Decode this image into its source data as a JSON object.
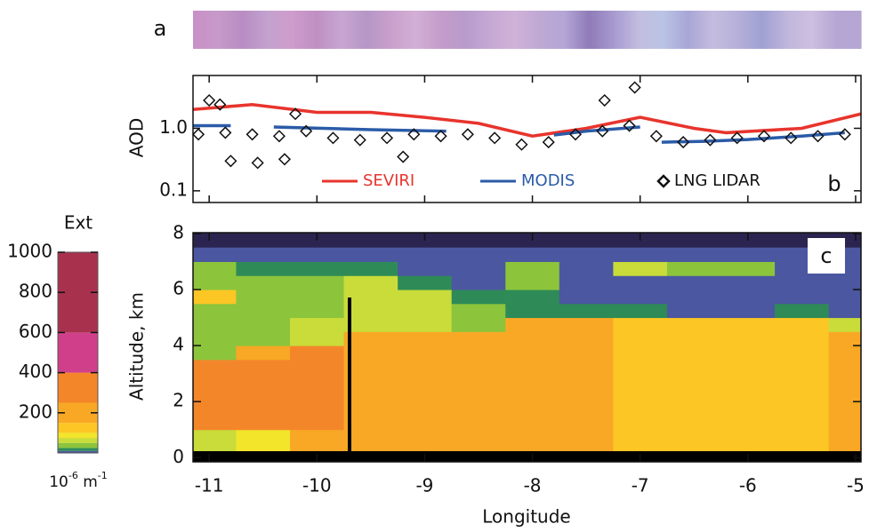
{
  "chart_data": [
    {
      "type": "image_strip",
      "panel_label": "a",
      "colors": [
        "#c890c8",
        "#c79ac9",
        "#b98cc3",
        "#c3a2cf",
        "#cf9ccb",
        "#bf8fc4",
        "#c8a6d2",
        "#b596c6",
        "#c9a0cc",
        "#d2b0d6",
        "#c49cca",
        "#b79bcb",
        "#c6a8d4",
        "#d0b2d8",
        "#bfa8d4",
        "#b4a6d6",
        "#8f7bb8",
        "#a79ad0",
        "#c2bde0",
        "#b9c4e4",
        "#a8a6d6",
        "#c5bddf",
        "#b6b0da",
        "#9fa0d2",
        "#c0b6dc",
        "#cdbfe0",
        "#b5a6d4"
      ]
    },
    {
      "type": "line_scatter",
      "panel_label": "b",
      "ylabel": "AOD",
      "yscale": "log",
      "ylim": [
        0.065,
        7
      ],
      "yticks": [
        0.1,
        {
          "value": 1,
          "label": "1.0"
        }
      ],
      "xlim": [
        -11.15,
        -4.95
      ],
      "xticks": [
        -11,
        -10,
        -9,
        -8,
        -7,
        -6,
        -5
      ],
      "series": [
        {
          "name": "SEVIRI",
          "color": "#e8342c",
          "marker": "line",
          "x": [
            -11.15,
            -10.6,
            -10,
            -9.5,
            -9,
            -8.5,
            -8,
            -7.5,
            -7,
            -6.5,
            -6.2,
            -5.5,
            -4.95
          ],
          "values": [
            2.0,
            2.4,
            1.8,
            1.8,
            1.5,
            1.2,
            0.75,
            1.0,
            1.5,
            1.0,
            0.85,
            1.0,
            1.7
          ]
        },
        {
          "name": "MODIS",
          "color": "#2a5ba8",
          "marker": "line",
          "x": [
            -11.15,
            -10.8,
            -10.6,
            -10.4,
            -9.5,
            -8.8,
            -8.7,
            -7.8,
            -7.5,
            -7.0,
            -6.85,
            -6.8,
            -6.4,
            -6,
            -5.5,
            -5.1
          ],
          "values": [
            1.1,
            1.1,
            null,
            1.05,
            0.95,
            0.9,
            null,
            0.78,
            0.9,
            1.05,
            null,
            0.6,
            0.62,
            0.66,
            0.75,
            0.85
          ]
        },
        {
          "name": "LNG LIDAR",
          "color": "#111111",
          "marker": "diamond",
          "x": [
            -11.1,
            -10.85,
            -10.6,
            -10.35,
            -10.1,
            -9.85,
            -9.6,
            -9.35,
            -9.1,
            -8.85,
            -8.6,
            -8.35,
            -8.1,
            -7.85,
            -7.6,
            -7.35,
            -7.1,
            -6.85,
            -6.6,
            -6.35,
            -6.1,
            -5.85,
            -5.6,
            -5.35,
            -5.1,
            -11.0,
            -10.9,
            -10.8,
            -10.55,
            -10.3,
            -10.2,
            -7.33,
            -7.05,
            -9.2
          ],
          "values": [
            0.8,
            0.85,
            0.8,
            0.75,
            0.9,
            0.7,
            0.65,
            0.7,
            0.8,
            0.75,
            0.8,
            0.7,
            0.55,
            0.6,
            0.8,
            0.9,
            1.1,
            0.75,
            0.6,
            0.65,
            0.7,
            0.75,
            0.7,
            0.75,
            0.8,
            2.8,
            2.4,
            0.3,
            0.28,
            0.32,
            1.7,
            2.8,
            4.5,
            0.35
          ]
        }
      ]
    },
    {
      "type": "heatmap",
      "panel_label": "c",
      "xlabel": "Longitude",
      "ylabel": "Altitude, km",
      "xlim": [
        -11.15,
        -4.95
      ],
      "xticks": [
        -11,
        -10,
        -9,
        -8,
        -7,
        -6,
        -5
      ],
      "ylim": [
        -0.15,
        8.03
      ],
      "yticks": [
        0,
        2,
        4,
        6,
        8
      ],
      "x": [
        -11,
        -10.5,
        -10,
        -9.5,
        -9,
        -8.5,
        -8,
        -7.5,
        -7,
        -6.5,
        -6,
        -5.5,
        -5
      ],
      "y": [
        0.25,
        0.75,
        1.25,
        1.75,
        2.25,
        2.75,
        3.25,
        3.75,
        4.25,
        4.75,
        5.25,
        5.75,
        6.25,
        6.75,
        7.25
      ],
      "z": [
        [
          60,
          60,
          250,
          250,
          250,
          250,
          250,
          40,
          40,
          40,
          40,
          100,
          30,
          30,
          5
        ],
        [
          80,
          80,
          250,
          250,
          250,
          250,
          250,
          150,
          40,
          40,
          40,
          40,
          40,
          20,
          5
        ],
        [
          150,
          150,
          250,
          250,
          250,
          250,
          250,
          250,
          50,
          50,
          40,
          40,
          40,
          20,
          5
        ],
        [
          200,
          200,
          200,
          200,
          200,
          200,
          200,
          200,
          200,
          50,
          50,
          50,
          50,
          20,
          5
        ],
        [
          150,
          150,
          150,
          150,
          150,
          150,
          150,
          150,
          150,
          50,
          50,
          50,
          20,
          5,
          5
        ],
        [
          150,
          150,
          150,
          150,
          150,
          150,
          150,
          150,
          150,
          40,
          40,
          20,
          5,
          5,
          5
        ],
        [
          150,
          150,
          150,
          150,
          150,
          150,
          150,
          150,
          150,
          150,
          20,
          20,
          40,
          40,
          5
        ],
        [
          150,
          150,
          150,
          150,
          150,
          150,
          150,
          150,
          150,
          150,
          20,
          5,
          5,
          5,
          5
        ],
        [
          130,
          130,
          130,
          130,
          130,
          130,
          130,
          130,
          130,
          130,
          20,
          5,
          5,
          50,
          5
        ],
        [
          130,
          130,
          130,
          130,
          130,
          130,
          130,
          130,
          130,
          130,
          5,
          5,
          5,
          40,
          5
        ],
        [
          130,
          130,
          130,
          130,
          130,
          130,
          130,
          130,
          130,
          130,
          5,
          5,
          5,
          40,
          5
        ],
        [
          130,
          130,
          130,
          130,
          130,
          130,
          130,
          130,
          130,
          130,
          20,
          5,
          5,
          5,
          5
        ],
        [
          150,
          150,
          150,
          150,
          150,
          150,
          150,
          150,
          150,
          50,
          5,
          5,
          5,
          5,
          5
        ]
      ],
      "colorbar": {
        "title": "Ext",
        "unit": [
          "10",
          "-6",
          " m",
          "-1"
        ],
        "lim": [
          0,
          1000
        ],
        "ticks": [
          200,
          400,
          600,
          800,
          1000
        ],
        "levels": [
          0,
          10,
          25,
          50,
          75,
          100,
          150,
          250,
          400,
          600,
          1000
        ],
        "colors": [
          "#4b57a0",
          "#2e8b57",
          "#8cc43c",
          "#c9dc3a",
          "#f2e52a",
          "#fcc624",
          "#f9a825",
          "#f4862a",
          "#d0408a",
          "#a8324e"
        ]
      }
    }
  ]
}
